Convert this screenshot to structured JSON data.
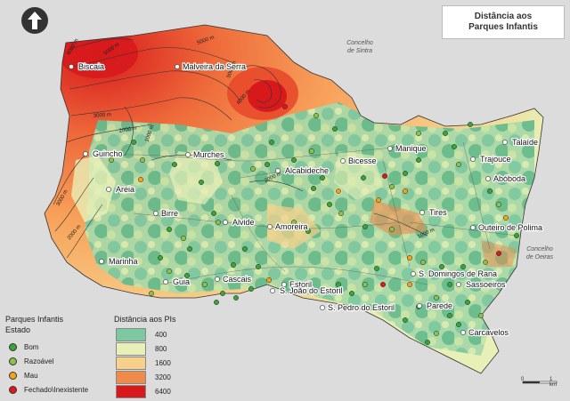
{
  "title": "Distância aos Parques Infantis",
  "neighbors": [
    "Concelho de Sintra",
    "Concelho de Oeiras"
  ],
  "places": [
    "Biscaia",
    "Malveira da Serra",
    "Guincho",
    "Murches",
    "Alcabideche",
    "Manique",
    "Talaíde",
    "Bicesse",
    "Trajouce",
    "Abóboda",
    "Areia",
    "Birre",
    "Alvide",
    "Amoreira",
    "Tires",
    "Outeiro de Polima",
    "Marinha",
    "Cascais",
    "Guia",
    "Estoril",
    "S. João do Estoril",
    "S. Domingos de Rana",
    "Sassoeiros",
    "S. Pedro do Estoril",
    "Parede",
    "Carcavelos"
  ],
  "contours": [
    "6000 m",
    "5000 m",
    "5000 m",
    "4000 m",
    "5000 m",
    "3000 m",
    "2000 m",
    "1000 m",
    "3000 m",
    "2000 m",
    "2000 m",
    "1000 m"
  ],
  "legend_parks": {
    "title": "Parques Infantis",
    "subtitle": "Estado",
    "items": [
      {
        "label": "Bom",
        "color": "#3aa535"
      },
      {
        "label": "Razoável",
        "color": "#8bc34a"
      },
      {
        "label": "Mau",
        "color": "#f5a31a"
      },
      {
        "label": "Fechado\\Inexistente",
        "color": "#e0161b"
      }
    ]
  },
  "legend_distance": {
    "title": "Distância aos PIs",
    "items": [
      {
        "label": "400",
        "color": "#7cc8a0"
      },
      {
        "label": "800",
        "color": "#e8f0b8"
      },
      {
        "label": "1600",
        "color": "#f7d08a"
      },
      {
        "label": "3200",
        "color": "#ee8a4a"
      },
      {
        "label": "6400",
        "color": "#d7191c"
      }
    ]
  },
  "scale": {
    "start": "0",
    "end": "1 km"
  }
}
